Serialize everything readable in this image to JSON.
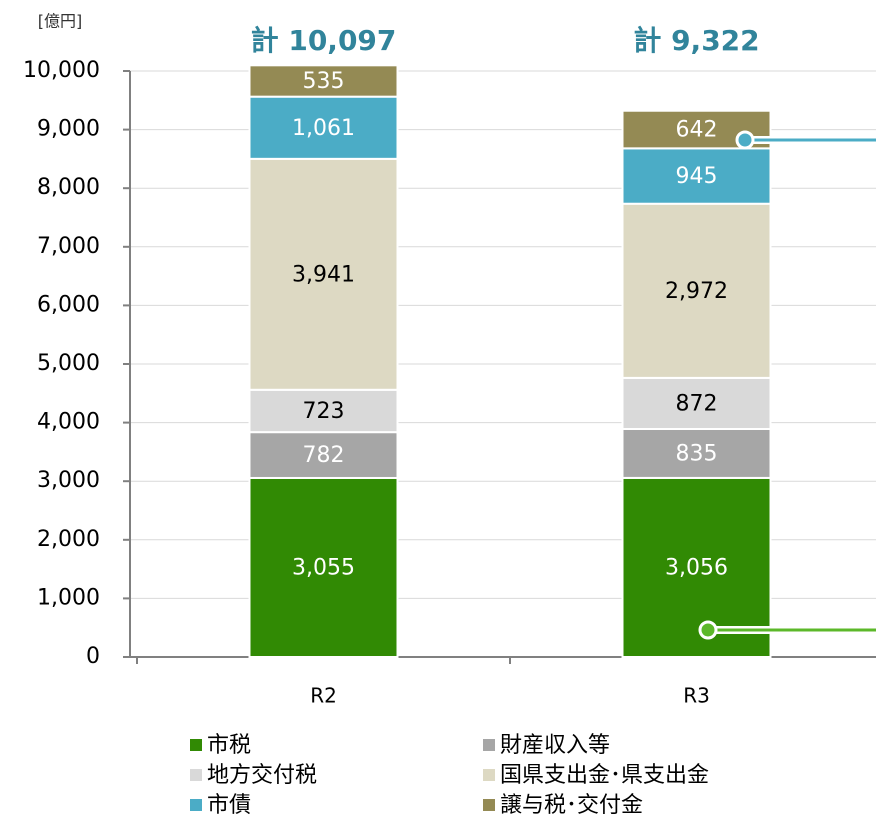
{
  "chart_data": {
    "type": "stacked_bar",
    "unit_label": "[億円]",
    "totals": [
      "計 10,097",
      "計 9,322"
    ],
    "categories": [
      "R2",
      "R3"
    ],
    "ylim": [
      0,
      10000
    ],
    "yticks": [
      0,
      {
        "value": 1000,
        "label": "1,000"
      },
      {
        "value": 2000,
        "label": "2,000"
      },
      {
        "value": 3000,
        "label": "3,000"
      },
      {
        "value": 4000,
        "label": "4,000"
      },
      {
        "value": 5000,
        "label": "5,000"
      },
      {
        "value": 6000,
        "label": "6,000"
      },
      {
        "value": 7000,
        "label": "7,000"
      },
      {
        "value": 8000,
        "label": "8,000"
      },
      {
        "value": 9000,
        "label": "9,000"
      },
      {
        "value": 10000,
        "label": "10,000"
      }
    ],
    "grid": true,
    "series": [
      {
        "name": "市税",
        "color": "#318a04",
        "label_color": "#ffffff",
        "values": [
          3055,
          3056
        ],
        "value_labels": [
          "3,055",
          "3,056"
        ]
      },
      {
        "name": "財産収入等",
        "color": "#a6a6a6",
        "label_color": "#ffffff",
        "values": [
          782,
          835
        ]
      },
      {
        "name": "地方交付税",
        "color": "#d9d9d9",
        "label_color": "#000000",
        "values": [
          723,
          872
        ]
      },
      {
        "name": "国県支出金･県支出金",
        "color": "#ddd9c3",
        "label_color": "#000000",
        "values": [
          3941,
          2972
        ],
        "value_labels": [
          "3,941",
          "2,972"
        ]
      },
      {
        "name": "市債",
        "color": "#4bacc6",
        "label_color": "#ffffff",
        "values": [
          1061,
          945
        ],
        "value_labels": [
          "1,061",
          "945"
        ]
      },
      {
        "name": "譲与税･交付金",
        "color": "#948a54",
        "label_color": "#ffffff",
        "values": [
          535,
          642
        ]
      }
    ]
  }
}
